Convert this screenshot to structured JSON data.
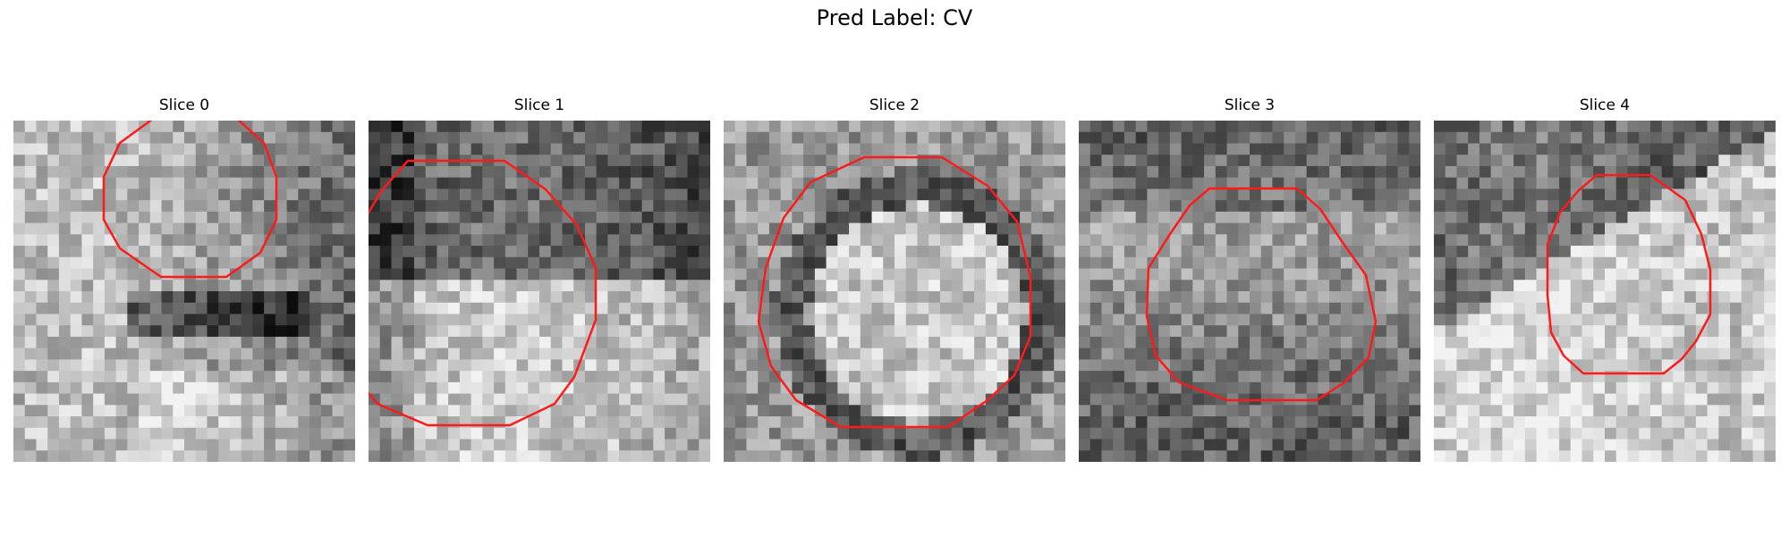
{
  "figure": {
    "title": "Pred Label: CV"
  },
  "slices": [
    {
      "title": "Slice 0",
      "contour_color": "#ff1a1a"
    },
    {
      "title": "Slice 1",
      "contour_color": "#ff1a1a"
    },
    {
      "title": "Slice 2",
      "contour_color": "#ff1a1a"
    },
    {
      "title": "Slice 3",
      "contour_color": "#ff1a1a"
    },
    {
      "title": "Slice 4",
      "contour_color": "#ff1a1a"
    }
  ]
}
